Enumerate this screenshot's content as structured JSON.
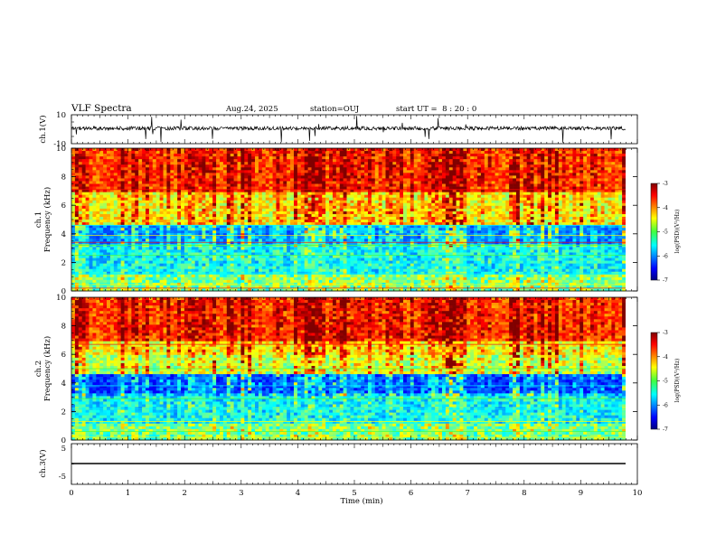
{
  "header": {
    "title": "VLF Spectra",
    "date": "Aug.24, 2025",
    "station": "station=OUJ",
    "start_ut": "start UT =  8 : 20 : 0"
  },
  "chart_data": [
    {
      "type": "line",
      "name": "ch1-waveform",
      "ylabel": "ch.1(V)",
      "ylim": [
        -10,
        10
      ],
      "yticks": [
        "10",
        "-10"
      ],
      "baseline": 0
    },
    {
      "type": "heatmap",
      "name": "ch1-spectrogram",
      "ylabel": "ch.1\nFrequency (kHz)",
      "ylabel_lines": [
        "ch.1",
        "Frequency (kHz)"
      ],
      "ylim": [
        0,
        10
      ],
      "yticks": [
        "10",
        "8",
        "6",
        "4",
        "2",
        "0"
      ],
      "colorbar": {
        "label": "log(PSD)(V²/Hz)",
        "range": [
          -7,
          -3
        ],
        "ticks": [
          "-3",
          "-4",
          "-5",
          "-6",
          "-7"
        ]
      }
    },
    {
      "type": "heatmap",
      "name": "ch2-spectrogram",
      "ylabel_lines": [
        "ch.2",
        "Frequency (kHz)"
      ],
      "ylim": [
        0,
        10
      ],
      "yticks": [
        "10",
        "8",
        "6",
        "4",
        "2",
        "0"
      ],
      "colorbar": {
        "label": "log(PSD)(V²/Hz)",
        "range": [
          -7,
          -3
        ],
        "ticks": [
          "-3",
          "-4",
          "-5",
          "-6",
          "-7"
        ]
      }
    },
    {
      "type": "line",
      "name": "ch3-waveform",
      "ylabel": "ch.3(V)",
      "ylim": [
        -5,
        5
      ],
      "yticks": [
        "5",
        "-5"
      ],
      "baseline": 0
    }
  ],
  "xaxis": {
    "label": "Time (min)",
    "range": [
      0,
      10
    ],
    "ticks": [
      "0",
      "1",
      "2",
      "3",
      "4",
      "5",
      "6",
      "7",
      "8",
      "9",
      "10"
    ]
  },
  "colors": {
    "dark_blue": "#00007f",
    "blue": "#0000ff",
    "cyan": "#00ffff",
    "green": "#3fff3f",
    "yellow": "#ffff00",
    "red": "#ff0000",
    "dark_red": "#7f0000"
  }
}
